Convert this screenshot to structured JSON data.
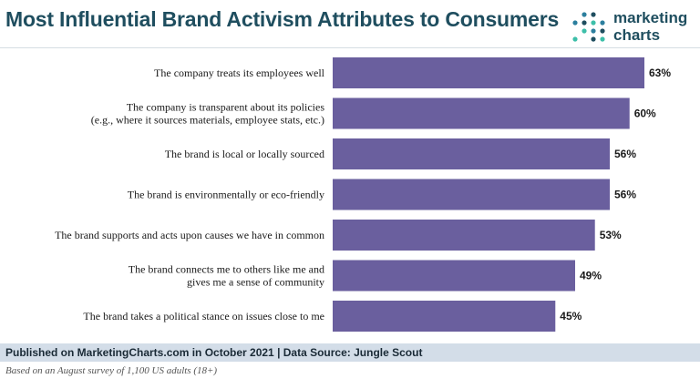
{
  "header": {
    "title": "Most Influential Brand Activism Attributes to Consumers"
  },
  "logo": {
    "line1": "marketing",
    "line2": "charts",
    "dot_colors": [
      "#3dbfa9",
      "#2c7f9e",
      "#1f4e5f"
    ]
  },
  "chart_data": {
    "type": "bar",
    "orientation": "horizontal",
    "categories": [
      [
        "The company treats its employees well"
      ],
      [
        "The company is transparent about its policies",
        "(e.g., where it sources materials, employee stats, etc.)"
      ],
      [
        "The brand is local or locally sourced"
      ],
      [
        "The brand is environmentally or eco-friendly"
      ],
      [
        "The brand supports and acts upon causes we have in common"
      ],
      [
        "The brand connects me to others like me and",
        "gives me a sense of community"
      ],
      [
        "The brand takes a political stance on issues close to me"
      ]
    ],
    "values": [
      63,
      60,
      56,
      56,
      53,
      49,
      45
    ],
    "value_labels": [
      "63%",
      "60%",
      "56%",
      "56%",
      "53%",
      "49%",
      "45%"
    ],
    "xlim": [
      0,
      70
    ],
    "bar_color": "#6a5f9e",
    "grid": false,
    "legend": "none"
  },
  "footer": {
    "source": "Published on MarketingCharts.com in October 2021 | Data Source: Jungle Scout",
    "note": "Based on an August survey of 1,100 US adults (18+)"
  }
}
